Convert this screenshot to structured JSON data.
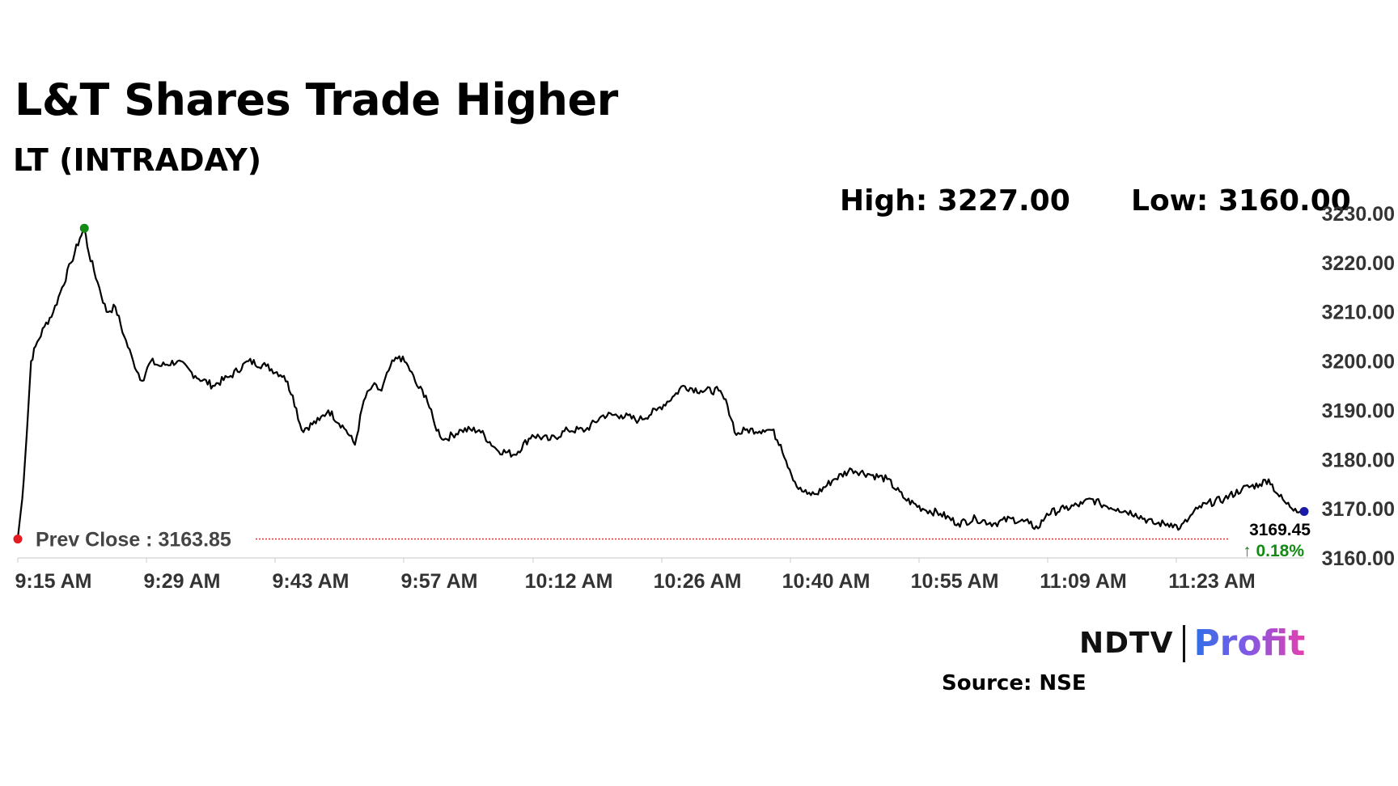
{
  "header": {
    "title": "L&T Shares Trade Higher",
    "subtitle": "LT (INTRADAY)",
    "high_label": "High: 3227.00",
    "low_label": "Low: 3160.00"
  },
  "footer": {
    "brand_ndtv": "NDTV",
    "brand_profit": "Profit",
    "source": "Source: NSE"
  },
  "colors": {
    "line": "#000000",
    "prev_close": "#e31b23",
    "high_marker": "#138a13",
    "last_marker": "#1a1aa8",
    "change_up": "#138a13",
    "brand_blue": "#2f6fe8",
    "brand_pink": "#e63fb0"
  },
  "chart_data": {
    "type": "line",
    "title": "LT (INTRADAY)",
    "xlabel": "",
    "ylabel": "",
    "x_ticks": [
      "9:15 AM",
      "9:29 AM",
      "9:43 AM",
      "9:57 AM",
      "10:12 AM",
      "10:26 AM",
      "10:40 AM",
      "10:55 AM",
      "11:09 AM",
      "11:23 AM"
    ],
    "y_ticks": [
      "3160.00",
      "3170.00",
      "3180.00",
      "3190.00",
      "3200.00",
      "3210.00",
      "3220.00",
      "3230.00"
    ],
    "ylim": [
      3160,
      3230
    ],
    "x_minutes_range": [
      0,
      145
    ],
    "grid": false,
    "prev_close": 3163.85,
    "prev_close_label": "Prev Close : 3163.85",
    "last_price_label": "3169.45",
    "change_label": "↑ 0.18%",
    "high": 3227.0,
    "low": 3160.0,
    "series": [
      {
        "name": "LT",
        "points": [
          [
            0,
            3164.0
          ],
          [
            0.5,
            3172.0
          ],
          [
            1,
            3185.0
          ],
          [
            1.5,
            3200.0
          ],
          [
            2,
            3203.0
          ],
          [
            3,
            3207.0
          ],
          [
            4,
            3210.0
          ],
          [
            5,
            3215.0
          ],
          [
            6,
            3220.0
          ],
          [
            7,
            3225.0
          ],
          [
            7.5,
            3227.0
          ],
          [
            8,
            3222.0
          ],
          [
            9,
            3216.0
          ],
          [
            10,
            3210.0
          ],
          [
            11,
            3211.0
          ],
          [
            12,
            3205.0
          ],
          [
            13,
            3200.0
          ],
          [
            14,
            3196.0
          ],
          [
            15,
            3200.0
          ],
          [
            16,
            3199.0
          ],
          [
            18,
            3200.0
          ],
          [
            20,
            3197.0
          ],
          [
            22,
            3195.0
          ],
          [
            24,
            3197.0
          ],
          [
            26,
            3200.0
          ],
          [
            28,
            3199.0
          ],
          [
            30,
            3197.0
          ],
          [
            31,
            3193.0
          ],
          [
            32,
            3186.0
          ],
          [
            34,
            3188.0
          ],
          [
            35,
            3190.0
          ],
          [
            37,
            3186.0
          ],
          [
            38,
            3183.0
          ],
          [
            39,
            3192.0
          ],
          [
            40,
            3195.0
          ],
          [
            41,
            3194.0
          ],
          [
            42,
            3199.0
          ],
          [
            43,
            3201.0
          ],
          [
            44,
            3199.0
          ],
          [
            45,
            3195.0
          ],
          [
            46,
            3193.0
          ],
          [
            47,
            3187.0
          ],
          [
            48,
            3184.0
          ],
          [
            50,
            3186.0
          ],
          [
            52,
            3186.0
          ],
          [
            54,
            3182.0
          ],
          [
            56,
            3181.0
          ],
          [
            58,
            3185.0
          ],
          [
            60,
            3184.0
          ],
          [
            62,
            3186.0
          ],
          [
            64,
            3186.0
          ],
          [
            66,
            3189.0
          ],
          [
            68,
            3189.0
          ],
          [
            70,
            3188.0
          ],
          [
            72,
            3190.0
          ],
          [
            74,
            3193.0
          ],
          [
            75,
            3195.0
          ],
          [
            77,
            3194.0
          ],
          [
            79,
            3194.0
          ],
          [
            80,
            3191.0
          ],
          [
            81,
            3185.0
          ],
          [
            82,
            3186.0
          ],
          [
            84,
            3186.0
          ],
          [
            85,
            3186.0
          ],
          [
            86,
            3183.0
          ],
          [
            87,
            3178.0
          ],
          [
            88,
            3174.0
          ],
          [
            89,
            3173.0
          ],
          [
            90,
            3173.0
          ],
          [
            92,
            3176.0
          ],
          [
            94,
            3178.0
          ],
          [
            96,
            3177.0
          ],
          [
            98,
            3176.0
          ],
          [
            100,
            3172.0
          ],
          [
            102,
            3170.0
          ],
          [
            104,
            3169.0
          ],
          [
            106,
            3167.0
          ],
          [
            108,
            3168.0
          ],
          [
            110,
            3167.0
          ],
          [
            112,
            3168.0
          ],
          [
            114,
            3167.0
          ],
          [
            115,
            3166.0
          ],
          [
            116,
            3169.0
          ],
          [
            118,
            3170.0
          ],
          [
            120,
            3171.0
          ],
          [
            121,
            3172.0
          ],
          [
            122,
            3171.0
          ],
          [
            124,
            3170.0
          ],
          [
            126,
            3169.0
          ],
          [
            128,
            3167.0
          ],
          [
            130,
            3167.0
          ],
          [
            131,
            3166.0
          ],
          [
            132,
            3168.0
          ],
          [
            133,
            3170.0
          ],
          [
            134,
            3171.0
          ],
          [
            136,
            3172.0
          ],
          [
            138,
            3174.0
          ],
          [
            140,
            3175.0
          ],
          [
            141,
            3176.0
          ],
          [
            142,
            3173.0
          ],
          [
            143,
            3171.0
          ],
          [
            144,
            3170.0
          ],
          [
            145,
            3169.45
          ]
        ]
      }
    ]
  }
}
